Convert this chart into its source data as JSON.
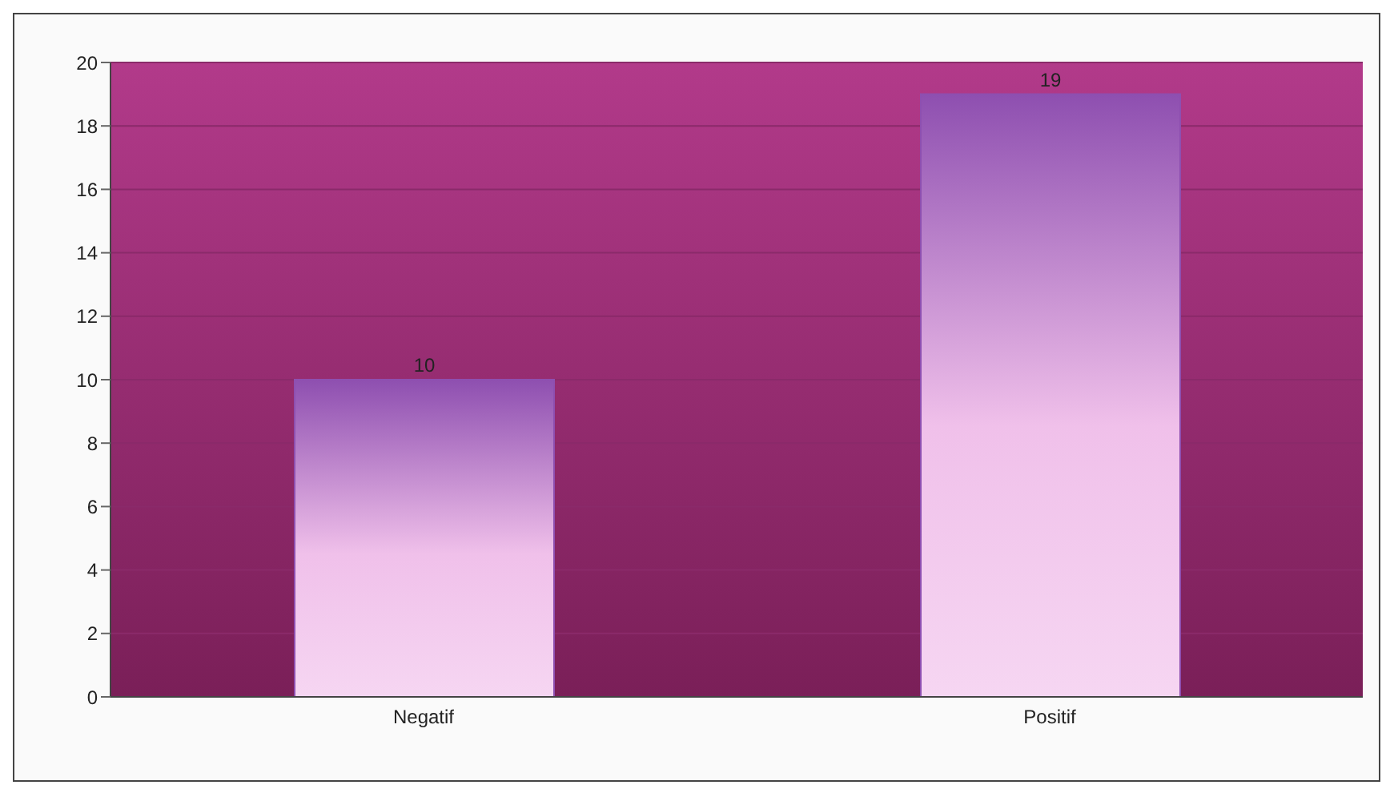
{
  "chart_data": {
    "type": "bar",
    "categories": [
      "Negatif",
      "Positif"
    ],
    "values": [
      10,
      19
    ],
    "color": "#8e4fb0",
    "ylim": [
      0,
      20
    ],
    "yticks": [
      0,
      2,
      4,
      6,
      8,
      10,
      12,
      14,
      16,
      18,
      20
    ],
    "grid": "y",
    "data_labels": true
  }
}
